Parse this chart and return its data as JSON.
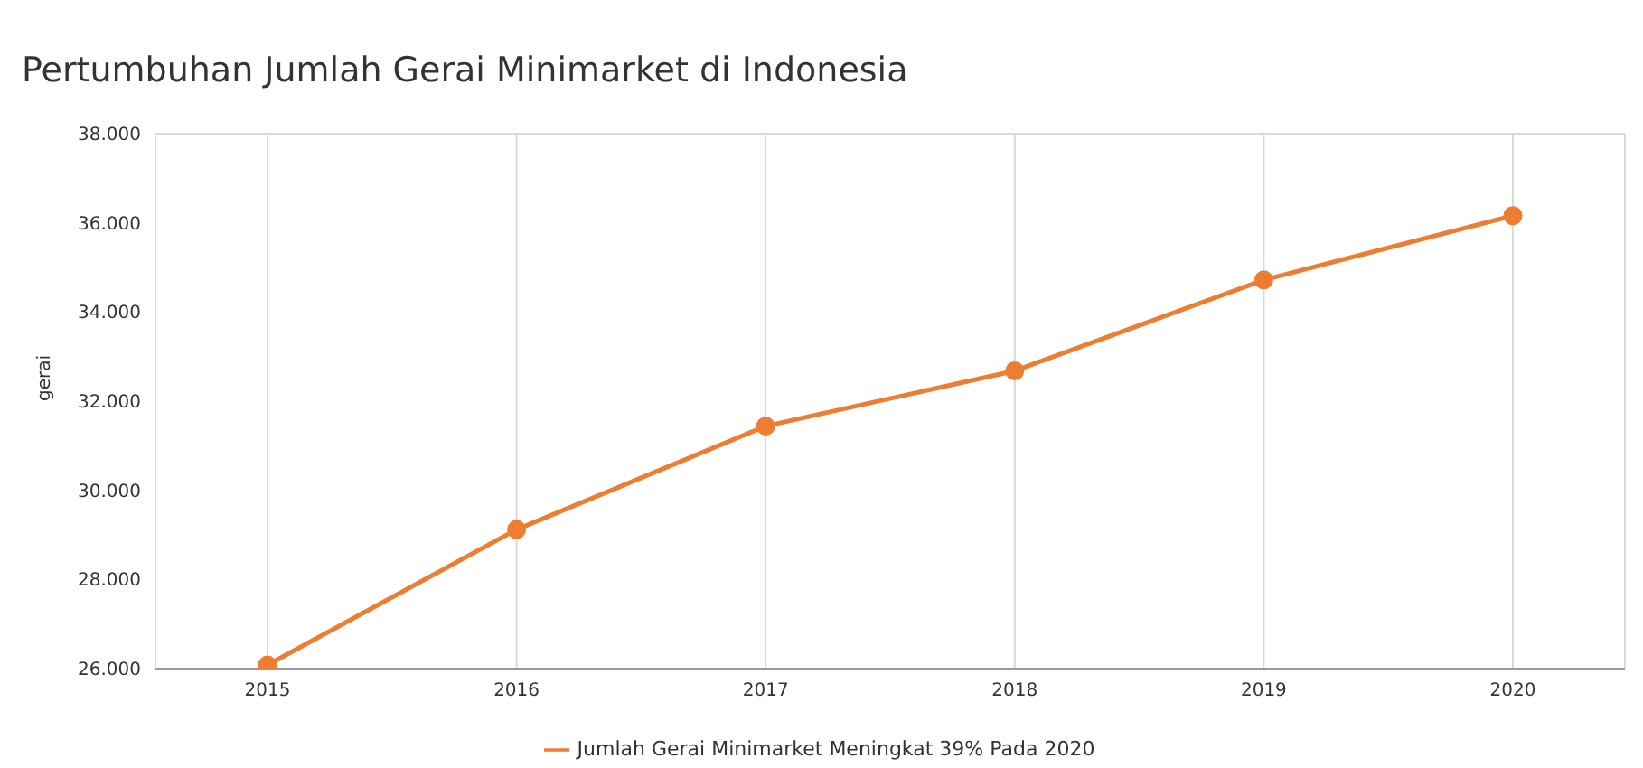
{
  "chart_data": {
    "type": "line",
    "title": "Pertumbuhan Jumlah Gerai Minimarket di Indonesia",
    "ylabel": "gerai",
    "categories": [
      "2015",
      "2016",
      "2017",
      "2018",
      "2019",
      "2020"
    ],
    "series": [
      {
        "name": "Jumlah Gerai Minimarket Meningkat 39% Pada 2020",
        "color": "#ed7d31",
        "values": [
          26080,
          29120,
          31440,
          32680,
          34720,
          36160
        ]
      }
    ],
    "ylim": [
      26000,
      38000
    ],
    "yticks": [
      {
        "value": 26000,
        "label": "26.000"
      },
      {
        "value": 28000,
        "label": "28.000"
      },
      {
        "value": 30000,
        "label": "30.000"
      },
      {
        "value": 32000,
        "label": "32.000"
      },
      {
        "value": 34000,
        "label": "34.000"
      },
      {
        "value": 36000,
        "label": "36.000"
      },
      {
        "value": 38000,
        "label": "38.000"
      }
    ],
    "grid": true,
    "legend": "bottom",
    "marker": "circle",
    "line_style": "solid"
  }
}
